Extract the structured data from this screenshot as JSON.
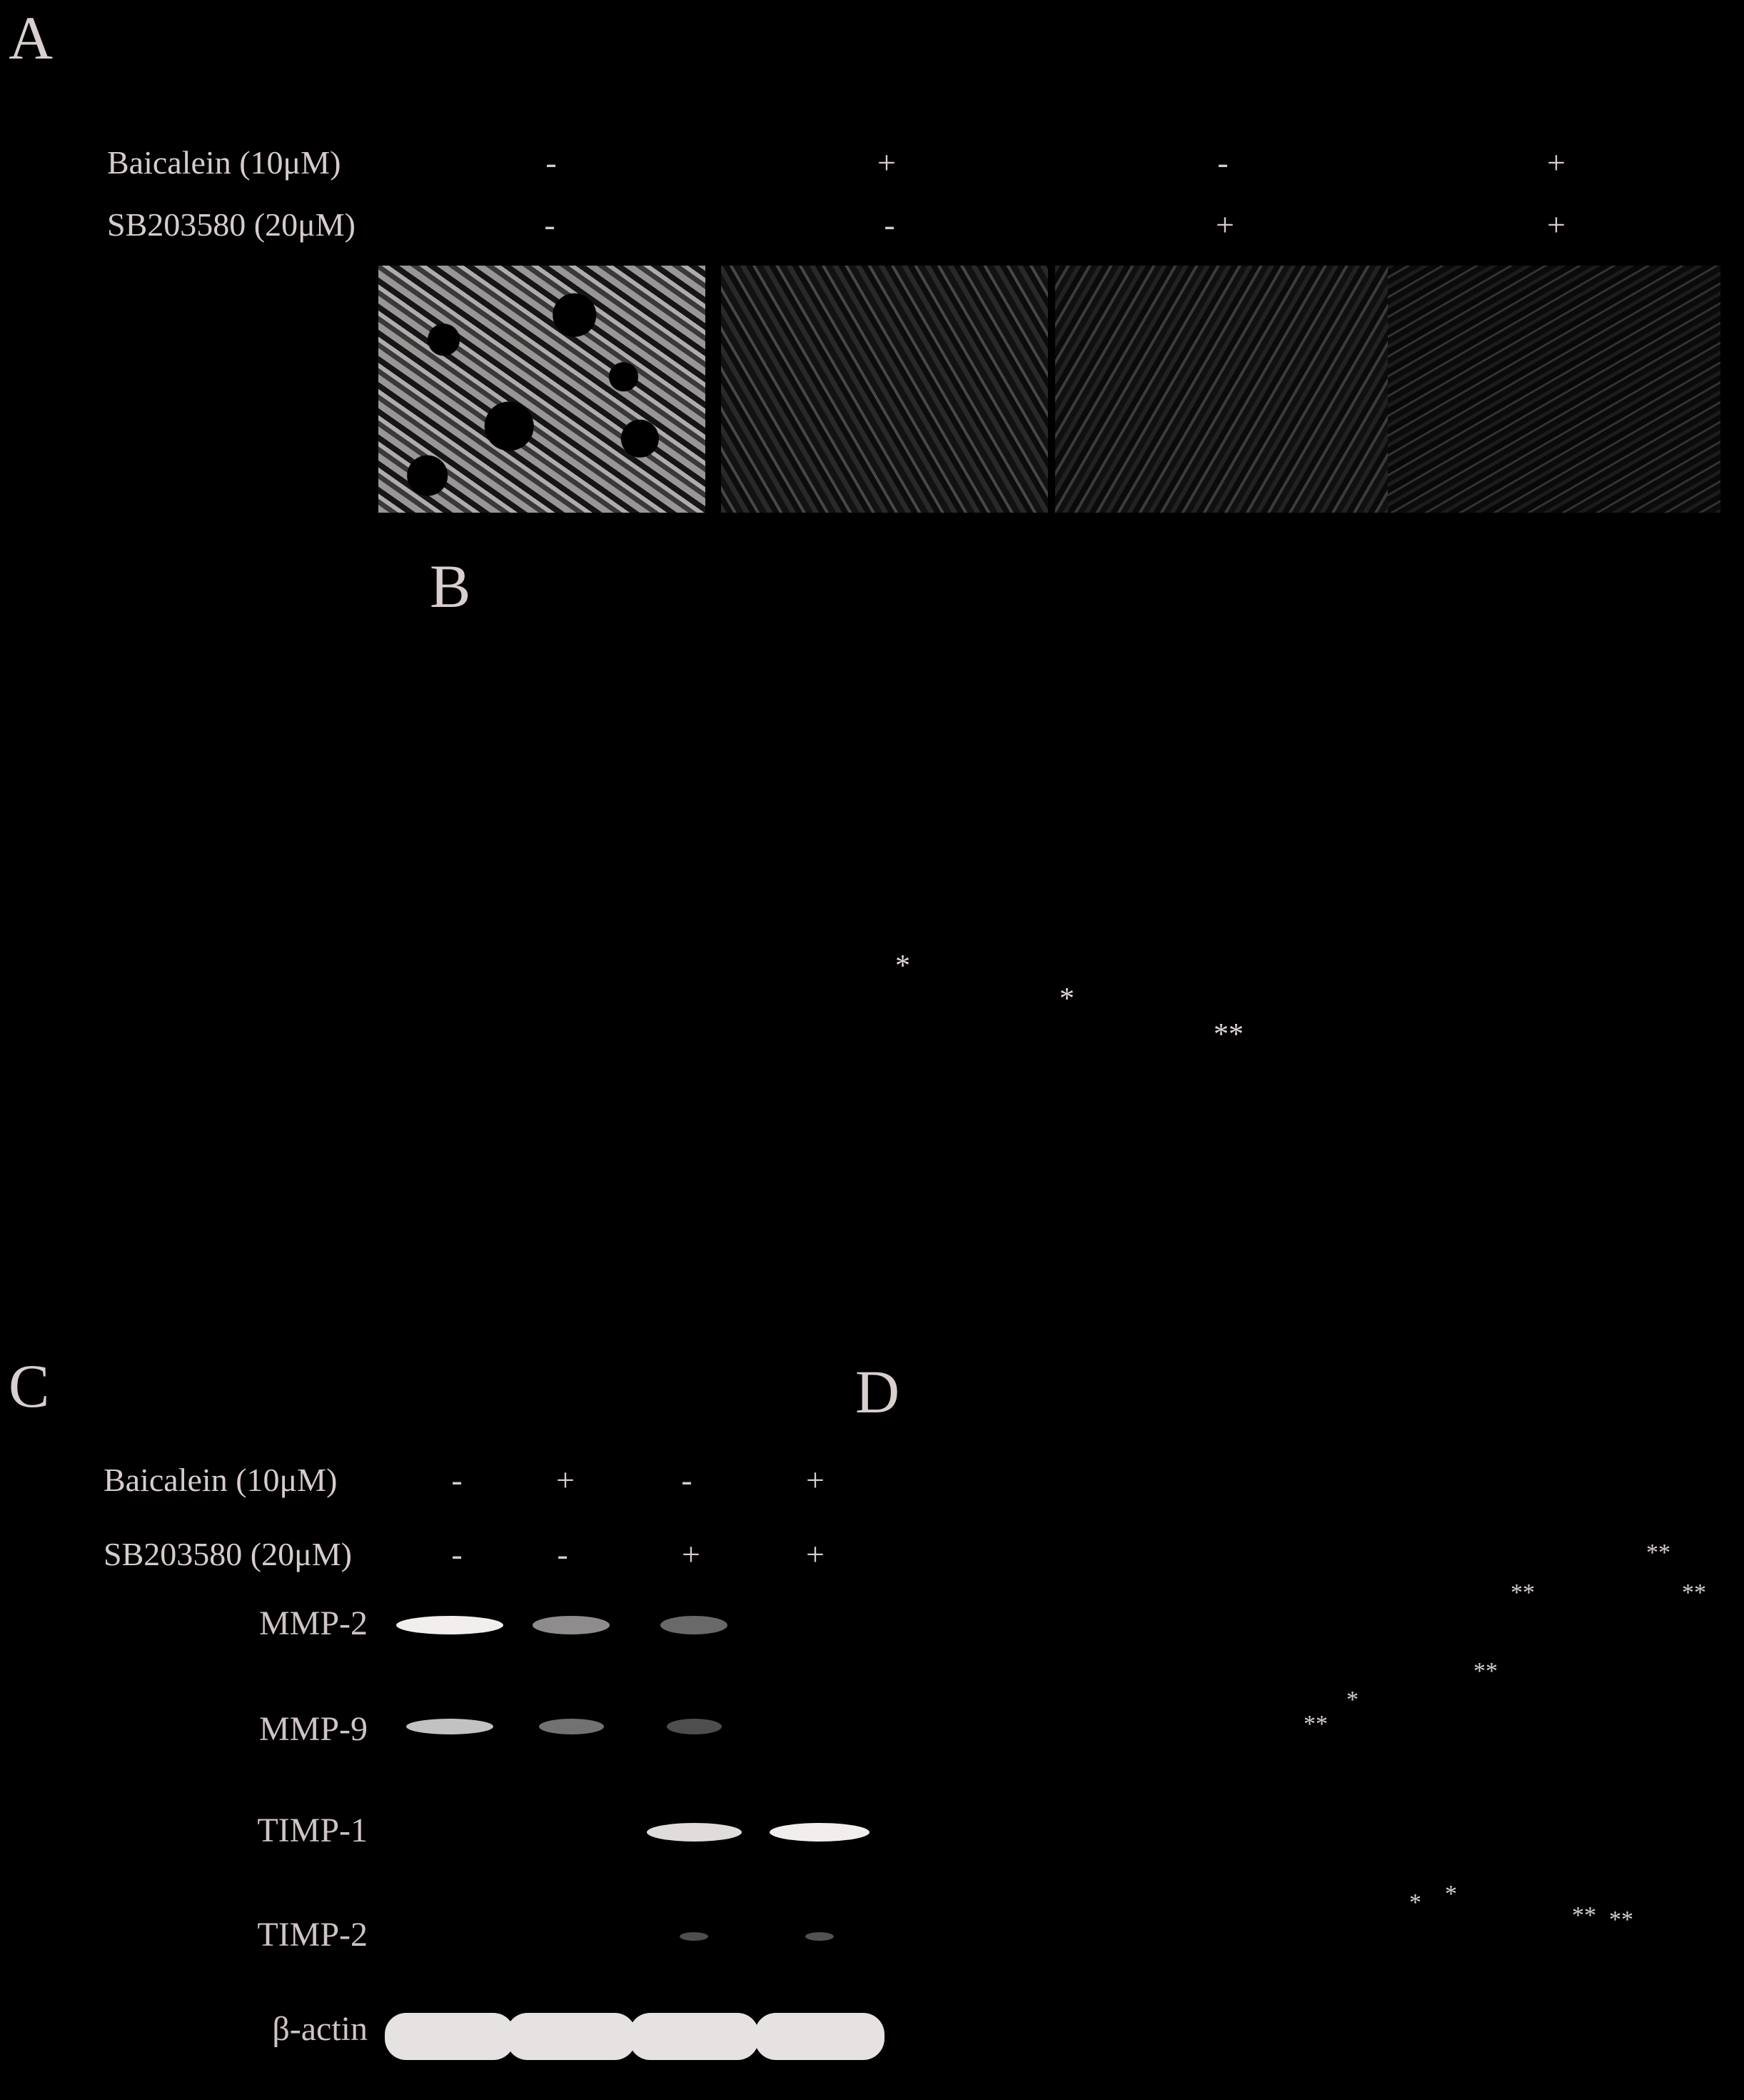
{
  "panelA": {
    "letter": "A",
    "rows": [
      {
        "label": "Baicalein   (10μM)",
        "signs": [
          "-",
          "+",
          "-",
          "+"
        ]
      },
      {
        "label": "SB203580 (20μM)",
        "signs": [
          "-",
          "-",
          "+",
          "+"
        ]
      }
    ],
    "images": [
      {
        "name": "micrograph-control"
      },
      {
        "name": "micrograph-baicalein"
      },
      {
        "name": "micrograph-sb203580"
      },
      {
        "name": "micrograph-baicalein-sb203580"
      }
    ]
  },
  "panelB": {
    "letter": "B",
    "significance": [
      "*",
      "*",
      "**"
    ]
  },
  "panelC": {
    "letter": "C",
    "rows": [
      {
        "label": "Baicalein   (10μM)",
        "signs": [
          "-",
          "+",
          "-",
          "+"
        ]
      },
      {
        "label": "SB203580 (20μM)",
        "signs": [
          "-",
          "-",
          "+",
          "+"
        ]
      }
    ],
    "bands": [
      {
        "label": "MMP-2",
        "intensity": [
          1.0,
          0.45,
          0.25,
          0.0
        ]
      },
      {
        "label": "MMP-9",
        "intensity": [
          0.75,
          0.3,
          0.1,
          0.0
        ]
      },
      {
        "label": "TIMP-1",
        "intensity": [
          0.0,
          0.0,
          0.9,
          1.0
        ]
      },
      {
        "label": "TIMP-2",
        "intensity": [
          0.0,
          0.0,
          0.1,
          0.12
        ]
      },
      {
        "label": "β-actin",
        "intensity": [
          1.0,
          1.0,
          1.0,
          1.0
        ]
      }
    ]
  },
  "panelD": {
    "letter": "D",
    "significance": [
      "**",
      "**",
      "**",
      "**",
      "*",
      "**",
      "*",
      "*",
      "**",
      "**"
    ]
  }
}
